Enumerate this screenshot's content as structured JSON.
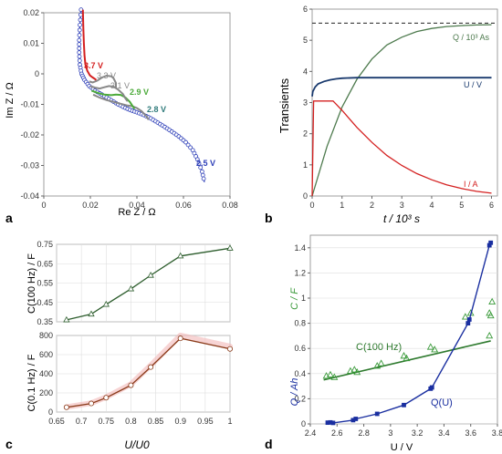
{
  "chart_data": [
    {
      "panel_letter": "a",
      "type": "line",
      "xlabel": "Re Z / Ω",
      "ylabel": "Im Z / Ω",
      "xlim": [
        0,
        0.08
      ],
      "ylim": [
        -0.04,
        0.02
      ],
      "xticks": [
        "0",
        "0.02",
        "0.04",
        "0.06",
        "0.08"
      ],
      "yticks": [
        "-0.04",
        "-0.03",
        "-0.02",
        "-0.01",
        "0",
        "0.01",
        "0.02"
      ],
      "series": [
        {
          "name": "3.7 V",
          "color": "#d42020",
          "x": [
            0.0168,
            0.017,
            0.0172,
            0.0175,
            0.0179,
            0.0187,
            0.0198,
            0.021,
            0.0222,
            0.0225
          ],
          "y": [
            0.021,
            0.015,
            0.01,
            0.006,
            0.003,
            0.001,
            -0.0005,
            -0.0012,
            -0.0018,
            -0.002
          ]
        },
        {
          "name": "3.3 V",
          "color": "#888888",
          "x": [
            0.0195,
            0.021,
            0.023,
            0.025,
            0.027,
            0.029,
            0.03,
            0.031,
            0.031
          ],
          "y": [
            -0.0025,
            -0.0028,
            -0.0022,
            -0.0012,
            -0.0006,
            -0.0008,
            -0.0015,
            -0.003,
            -0.0045
          ]
        },
        {
          "name": "3.1 V",
          "color": "#888888",
          "x": [
            0.02,
            0.022,
            0.024,
            0.026,
            0.028,
            0.03,
            0.032,
            0.034,
            0.035,
            0.036
          ],
          "y": [
            -0.004,
            -0.0045,
            -0.0048,
            -0.0044,
            -0.004,
            -0.0042,
            -0.0052,
            -0.0066,
            -0.008,
            -0.009
          ]
        },
        {
          "name": "2.9 V",
          "color": "#4caa3a",
          "x": [
            0.0205,
            0.023,
            0.026,
            0.029,
            0.031,
            0.033,
            0.035,
            0.037,
            0.038,
            0.039
          ],
          "y": [
            -0.0055,
            -0.0062,
            -0.0068,
            -0.007,
            -0.0068,
            -0.0069,
            -0.0077,
            -0.0092,
            -0.0104,
            -0.0115
          ]
        },
        {
          "name": "2.8 V",
          "color": "#888888",
          "x": [
            0.0212,
            0.024,
            0.027,
            0.03,
            0.033,
            0.036,
            0.038,
            0.04,
            0.042,
            0.044,
            0.045
          ],
          "y": [
            -0.0068,
            -0.0078,
            -0.0086,
            -0.0092,
            -0.0098,
            -0.0104,
            -0.0106,
            -0.0112,
            -0.0122,
            -0.0138,
            -0.015
          ]
        },
        {
          "name": "2.5 V",
          "color": "#2e3fb8",
          "x": [
            0.016,
            0.0155,
            0.0152,
            0.0152,
            0.0155,
            0.0162,
            0.0175,
            0.0195,
            0.022,
            0.025,
            0.028,
            0.031,
            0.034,
            0.037,
            0.04,
            0.043,
            0.046,
            0.049,
            0.052,
            0.055,
            0.058,
            0.061,
            0.064,
            0.066,
            0.068,
            0.069
          ],
          "y": [
            0.021,
            0.016,
            0.011,
            0.007,
            0.003,
            0.0,
            -0.002,
            -0.004,
            -0.0055,
            -0.0068,
            -0.0082,
            -0.0096,
            -0.0108,
            -0.0118,
            -0.0126,
            -0.0135,
            -0.0146,
            -0.016,
            -0.0174,
            -0.0189,
            -0.0205,
            -0.0224,
            -0.025,
            -0.028,
            -0.032,
            -0.0355
          ]
        }
      ]
    },
    {
      "panel_letter": "b",
      "type": "line",
      "xlabel": "t / 10³ s",
      "ylabel": "Transients",
      "xlim": [
        0,
        6.2
      ],
      "ylim": [
        0,
        6
      ],
      "xticks": [
        "0",
        "1",
        "2",
        "3",
        "4",
        "5",
        "6"
      ],
      "yticks": [
        "0",
        "1",
        "2",
        "3",
        "4",
        "5",
        "6"
      ],
      "reference_line_y": 5.55,
      "series": [
        {
          "name": "Q / 10³ As",
          "color": "#4d7a4d",
          "x": [
            0,
            0.5,
            1.0,
            1.5,
            2.0,
            2.5,
            3.0,
            3.5,
            4.0,
            4.5,
            5.0,
            5.5,
            6.0
          ],
          "y": [
            0,
            1.6,
            2.85,
            3.75,
            4.4,
            4.85,
            5.1,
            5.28,
            5.38,
            5.44,
            5.47,
            5.49,
            5.5
          ]
        },
        {
          "name": "U / V",
          "color": "#1a3a6e",
          "x": [
            0,
            0.02,
            0.1,
            0.2,
            0.4,
            0.6,
            0.8,
            1.0,
            1.5,
            2.0,
            3.0,
            4.0,
            5.0,
            6.0
          ],
          "y": [
            3.2,
            3.35,
            3.5,
            3.6,
            3.68,
            3.73,
            3.76,
            3.78,
            3.8,
            3.8,
            3.8,
            3.8,
            3.8,
            3.8
          ]
        },
        {
          "name": "I / A",
          "color": "#d42020",
          "x": [
            0,
            0.05,
            0.7,
            0.8,
            1.0,
            1.5,
            2.0,
            2.5,
            3.0,
            3.5,
            4.0,
            4.5,
            5.0,
            5.5,
            6.0
          ],
          "y": [
            0,
            3.05,
            3.05,
            2.95,
            2.75,
            2.2,
            1.72,
            1.3,
            0.98,
            0.72,
            0.52,
            0.36,
            0.24,
            0.15,
            0.09
          ]
        }
      ]
    },
    {
      "panel_letter": "c",
      "type": "line",
      "xlabel": "U/U0",
      "xticks": [
        "0.65",
        "0.7",
        "0.75",
        "0.8",
        "0.85",
        "0.9",
        "0.95",
        "1"
      ],
      "xlim": [
        0.65,
        1.0
      ],
      "upper": {
        "ylabel": "C(100 Hz) / F",
        "ylim": [
          0.35,
          0.75
        ],
        "yticks": [
          "0.35",
          "0.45",
          "0.55",
          "0.65",
          "0.75"
        ],
        "series": [
          {
            "color": "#2e5e2e",
            "x": [
              0.67,
              0.72,
              0.75,
              0.8,
              0.84,
              0.9,
              1.0
            ],
            "y": [
              0.36,
              0.39,
              0.44,
              0.52,
              0.59,
              0.69,
              0.73
            ]
          }
        ]
      },
      "lower": {
        "ylabel": "C(0.1 Hz) / F",
        "ylim": [
          0,
          800
        ],
        "yticks": [
          "0",
          "200",
          "400",
          "600",
          "800"
        ],
        "series": [
          {
            "color": "#8a3b1a",
            "x": [
              0.67,
              0.72,
              0.75,
              0.8,
              0.84,
              0.9,
              1.0
            ],
            "y": [
              50,
              90,
              150,
              280,
              470,
              770,
              660
            ]
          }
        ]
      }
    },
    {
      "panel_letter": "d",
      "type": "scatter",
      "xlabel": "U / V",
      "xlim": [
        2.4,
        3.8
      ],
      "ylim": [
        0,
        1.5
      ],
      "xticks": [
        "2.4",
        "2.6",
        "2.8",
        "3",
        "3.2",
        "3.4",
        "3.6",
        "3.8"
      ],
      "yticks": [
        "0",
        "0.2",
        "0.4",
        "0.6",
        "0.8",
        "1",
        "1.2",
        "1.4"
      ],
      "ylabel_green": "C / F",
      "ylabel_blue": "Q / Ah",
      "series": [
        {
          "name": "C(100 Hz)",
          "color": "#3a9a3a",
          "marker": "triangle",
          "x": [
            2.52,
            2.55,
            2.58,
            2.7,
            2.73,
            2.75,
            2.9,
            2.93,
            3.1,
            3.12,
            3.3,
            3.33,
            3.56,
            3.6,
            3.74,
            3.75,
            3.76,
            3.74
          ],
          "y": [
            0.38,
            0.39,
            0.37,
            0.42,
            0.43,
            0.41,
            0.46,
            0.48,
            0.54,
            0.52,
            0.61,
            0.59,
            0.85,
            0.88,
            0.7,
            0.86,
            0.97,
            0.88
          ],
          "fit": {
            "x": [
              2.5,
              3.75
            ],
            "y": [
              0.35,
              0.66
            ]
          }
        },
        {
          "name": "Q(U)",
          "color": "#1a2fa0",
          "marker": "square",
          "x": [
            2.53,
            2.55,
            2.57,
            2.72,
            2.74,
            2.9,
            3.1,
            3.3,
            3.31,
            3.58,
            3.59,
            3.74,
            3.75
          ],
          "y": [
            0.01,
            0.012,
            0.008,
            0.03,
            0.04,
            0.08,
            0.15,
            0.28,
            0.29,
            0.8,
            0.83,
            1.42,
            1.44
          ]
        }
      ]
    }
  ],
  "labels": {
    "a_37": "3.7 V",
    "a_33": "3.3 V",
    "a_31": "3.1 V",
    "a_29": "2.9 V",
    "a_28": "2.8 V",
    "a_25": "2.5 V",
    "b_Q": "Q / 10³ As",
    "b_U": "U / V",
    "b_I": "I / A",
    "d_C": "C(100 Hz)",
    "d_Q": "Q(U)"
  }
}
